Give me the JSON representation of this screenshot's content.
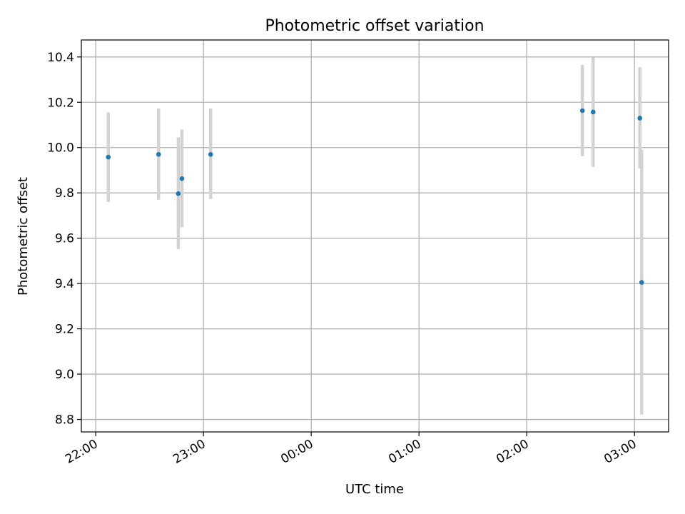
{
  "chart_data": {
    "type": "scatter",
    "title": "Photometric offset variation",
    "xlabel": "UTC time",
    "ylabel": "Photometric offset",
    "x_type": "time",
    "xlim": [
      "21:52",
      "03:19"
    ],
    "ylim": [
      8.745,
      10.475
    ],
    "x_ticks": [
      "22:00",
      "23:00",
      "00:00",
      "01:00",
      "02:00",
      "03:00"
    ],
    "y_ticks": [
      "8.8",
      "9.0",
      "9.2",
      "9.4",
      "9.6",
      "9.8",
      "10.0",
      "10.2",
      "10.4"
    ],
    "grid": true,
    "colors": {
      "marker": "#1f77b4",
      "error_bar": "#d3d3d3",
      "grid": "#b0b0b0"
    },
    "points": [
      {
        "x": "22:07",
        "y": 9.958,
        "yerr_low": 9.76,
        "yerr_high": 10.155
      },
      {
        "x": "22:35",
        "y": 9.97,
        "yerr_low": 9.77,
        "yerr_high": 10.172
      },
      {
        "x": "22:46",
        "y": 9.797,
        "yerr_low": 9.552,
        "yerr_high": 10.045
      },
      {
        "x": "22:48",
        "y": 9.863,
        "yerr_low": 9.648,
        "yerr_high": 10.08
      },
      {
        "x": "23:04",
        "y": 9.97,
        "yerr_low": 9.773,
        "yerr_high": 10.172
      },
      {
        "x": "02:31",
        "y": 10.163,
        "yerr_low": 9.962,
        "yerr_high": 10.365
      },
      {
        "x": "02:37",
        "y": 10.157,
        "yerr_low": 9.915,
        "yerr_high": 10.398
      },
      {
        "x": "03:03",
        "y": 10.13,
        "yerr_low": 9.908,
        "yerr_high": 10.355
      },
      {
        "x": "03:04",
        "y": 9.405,
        "yerr_low": 8.822,
        "yerr_high": 9.99
      }
    ]
  }
}
